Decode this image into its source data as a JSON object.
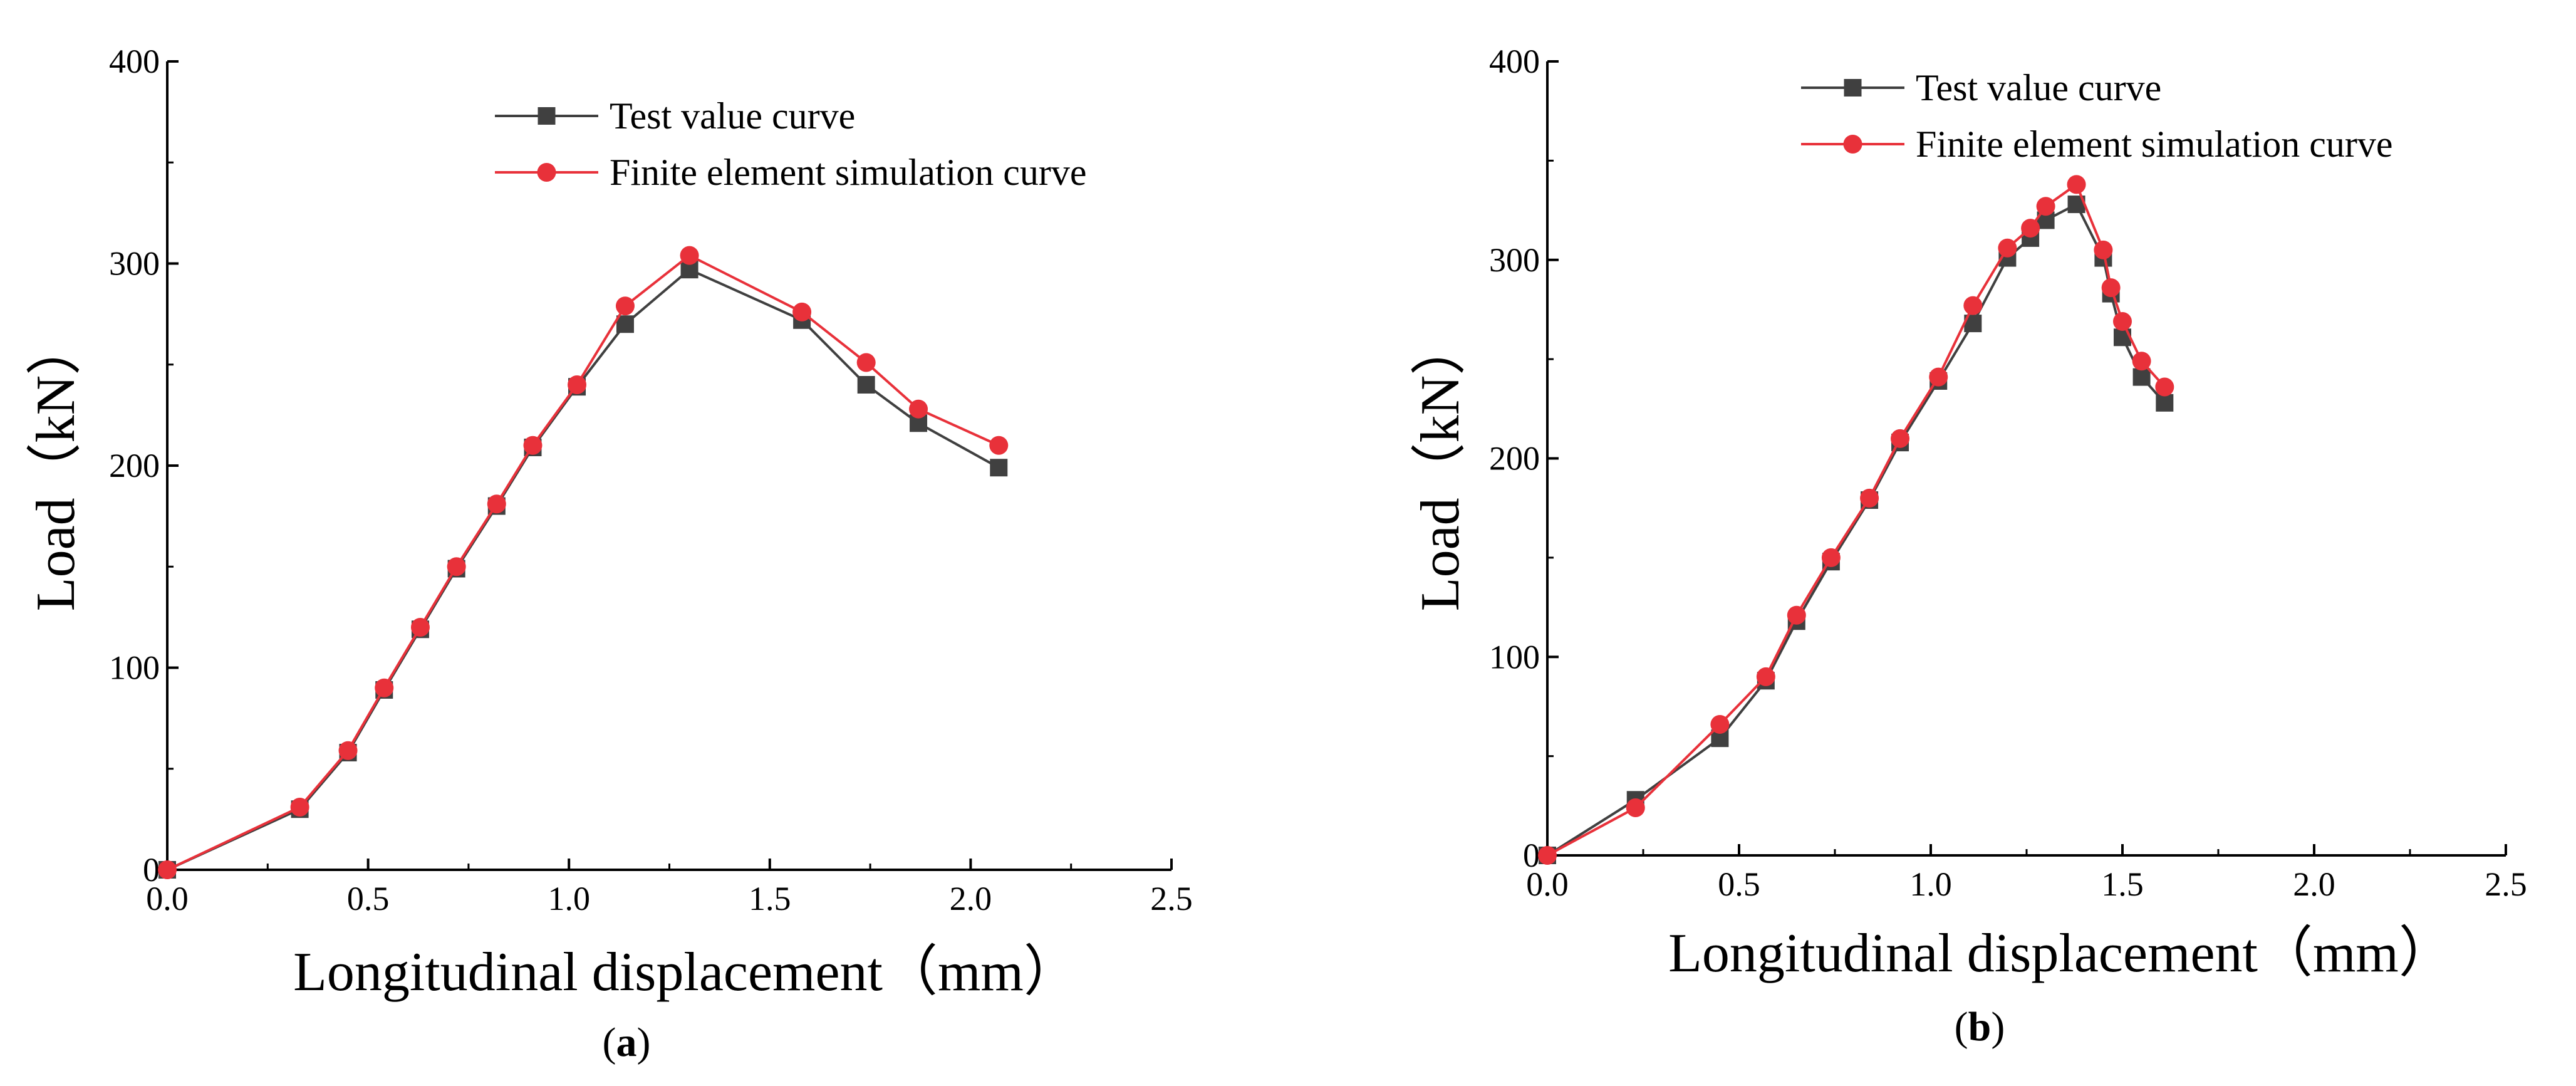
{
  "chart_data": [
    {
      "type": "line",
      "panel_label": "a",
      "title": "",
      "xlabel": "Longitudinal displacement（mm）",
      "ylabel": "Load（kN）",
      "xlim": [
        0,
        2.5
      ],
      "ylim": [
        0,
        400
      ],
      "xticks": [
        "0.0",
        "0.5",
        "1.0",
        "1.5",
        "2.0",
        "2.5"
      ],
      "yticks": [
        "0",
        "100",
        "200",
        "300",
        "400"
      ],
      "legend_position": "top-center",
      "series": [
        {
          "name": "Test value curve",
          "color": "#404040",
          "marker": "square",
          "x": [
            0,
            0.33,
            0.45,
            0.54,
            0.63,
            0.72,
            0.82,
            0.91,
            1.02,
            1.14,
            1.3,
            1.58,
            1.74,
            1.87,
            2.07
          ],
          "y": [
            0,
            30,
            58,
            89,
            119,
            149,
            180,
            209,
            239,
            270,
            297,
            272,
            240,
            221,
            199
          ]
        },
        {
          "name": "Finite element simulation curve",
          "color": "#e8313a",
          "marker": "circle",
          "x": [
            0,
            0.33,
            0.45,
            0.54,
            0.63,
            0.72,
            0.82,
            0.91,
            1.02,
            1.14,
            1.3,
            1.58,
            1.74,
            1.87,
            2.07
          ],
          "y": [
            0,
            31,
            59,
            90,
            120,
            150,
            181,
            210,
            240,
            279,
            304,
            276,
            251,
            228,
            210
          ]
        }
      ]
    },
    {
      "type": "line",
      "panel_label": "b",
      "title": "",
      "xlabel": "Longitudinal displacement（mm）",
      "ylabel": "Load（kN）",
      "xlim": [
        0,
        2.5
      ],
      "ylim": [
        0,
        400
      ],
      "xticks": [
        "0.0",
        "0.5",
        "1.0",
        "1.5",
        "2.0",
        "2.5"
      ],
      "yticks": [
        "0",
        "100",
        "200",
        "300",
        "400"
      ],
      "legend_position": "top-left",
      "series": [
        {
          "name": "Test value curve",
          "color": "#404040",
          "marker": "square",
          "x": [
            0,
            0.23,
            0.45,
            0.57,
            0.65,
            0.74,
            0.84,
            0.92,
            1.02,
            1.11,
            1.2,
            1.26,
            1.3,
            1.38,
            1.45,
            1.47,
            1.5,
            1.55,
            1.61
          ],
          "y": [
            0,
            28,
            59,
            88,
            118,
            148,
            179,
            208,
            239,
            268,
            301,
            311,
            320,
            328,
            301,
            283,
            261,
            241,
            228
          ]
        },
        {
          "name": "Finite element simulation curve",
          "color": "#e8313a",
          "marker": "circle",
          "x": [
            0,
            0.23,
            0.45,
            0.57,
            0.65,
            0.74,
            0.84,
            0.92,
            1.02,
            1.11,
            1.2,
            1.26,
            1.3,
            1.38,
            1.45,
            1.47,
            1.5,
            1.55,
            1.61
          ],
          "y": [
            0,
            24,
            66,
            90,
            121,
            150,
            180,
            210,
            241,
            277,
            306,
            316,
            327,
            338,
            305,
            286,
            269,
            249,
            236
          ]
        }
      ]
    }
  ]
}
